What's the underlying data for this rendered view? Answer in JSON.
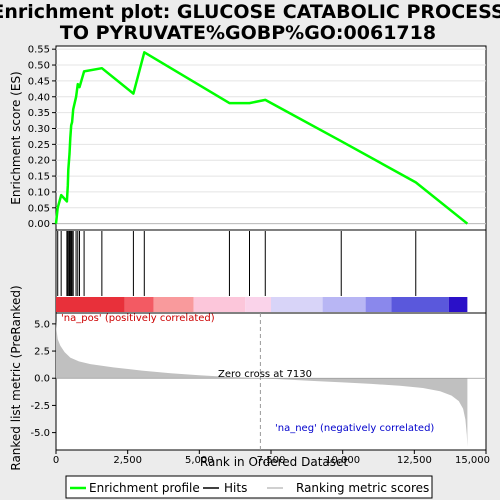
{
  "chart_data": {
    "type": "line",
    "title": "Enrichment plot: GLUCOSE CATABOLIC PROCESS TO PYRUVATE%GOBP%GO:0061718",
    "title_lines": [
      "Enrichment plot: GLUCOSE CATABOLIC PROCESS",
      "TO PYRUVATE%GOBP%GO:0061718"
    ],
    "colors": {
      "enrichment_line": "#00ff00",
      "hits": "#000000",
      "ranking_fill": "#c0c0c0",
      "positive_text": "#cc0000",
      "negative_text": "#0000cc",
      "plot_border": "#000000"
    },
    "es_panel": {
      "ylabel": "Enrichment score (ES)",
      "ylim": [
        -0.02,
        0.56
      ],
      "yticks": [
        0.0,
        0.05,
        0.1,
        0.15,
        0.2,
        0.25,
        0.3,
        0.35,
        0.4,
        0.45,
        0.5,
        0.55
      ],
      "ytick_labels": [
        "0.00",
        "0.05",
        "0.10",
        "0.15",
        "0.20",
        "0.25",
        "0.30",
        "0.35",
        "0.40",
        "0.45",
        "0.50",
        "0.55"
      ],
      "series": [
        {
          "name": "Enrichment profile",
          "x": [
            0,
            60,
            180,
            380,
            410,
            430,
            470,
            500,
            530,
            560,
            600,
            700,
            760,
            820,
            980,
            1600,
            2700,
            3080,
            6050,
            6750,
            7300,
            9950,
            12550,
            14350
          ],
          "y": [
            0.0,
            0.05,
            0.09,
            0.07,
            0.12,
            0.17,
            0.22,
            0.27,
            0.31,
            0.32,
            0.36,
            0.4,
            0.44,
            0.43,
            0.48,
            0.49,
            0.41,
            0.54,
            0.38,
            0.38,
            0.39,
            0.26,
            0.13,
            0.0
          ]
        }
      ]
    },
    "hits": {
      "positions": [
        60,
        180,
        380,
        410,
        430,
        470,
        500,
        530,
        560,
        600,
        700,
        760,
        820,
        980,
        1600,
        2700,
        3080,
        6050,
        6750,
        7300,
        9950,
        12550
      ]
    },
    "heatmap_bar": {
      "segments": [
        {
          "start": 0,
          "end": 2400,
          "color": "#e8303a"
        },
        {
          "start": 2400,
          "end": 3400,
          "color": "#f35a63"
        },
        {
          "start": 3400,
          "end": 4800,
          "color": "#f99a9c"
        },
        {
          "start": 4800,
          "end": 6600,
          "color": "#fcc6da"
        },
        {
          "start": 6600,
          "end": 7500,
          "color": "#fad3ea"
        },
        {
          "start": 7500,
          "end": 9300,
          "color": "#d8d4f8"
        },
        {
          "start": 9300,
          "end": 10800,
          "color": "#b8b6f4"
        },
        {
          "start": 10800,
          "end": 11700,
          "color": "#8a88ec"
        },
        {
          "start": 11700,
          "end": 13700,
          "color": "#5a58dc"
        },
        {
          "start": 13700,
          "end": 14350,
          "color": "#2a10c8"
        }
      ]
    },
    "ranking_panel": {
      "ylabel": "Ranked list metric (PreRanked)",
      "ylim": [
        -6.6,
        6.0
      ],
      "yticks": [
        -5.0,
        -2.5,
        0.0,
        2.5,
        5.0
      ],
      "ytick_labels": [
        "-5.0",
        "-2.5",
        "0.0",
        "2.5",
        "5.0"
      ],
      "series": [
        {
          "name": "Ranking metric scores",
          "x": [
            0,
            20,
            60,
            150,
            300,
            500,
            800,
            1200,
            2000,
            3000,
            4000,
            5000,
            6000,
            7130,
            8000,
            9000,
            10000,
            11000,
            12000,
            12800,
            13400,
            13800,
            14050,
            14200,
            14280,
            14330,
            14350
          ],
          "y": [
            5.3,
            4.4,
            3.6,
            3.0,
            2.4,
            1.9,
            1.55,
            1.3,
            1.0,
            0.7,
            0.45,
            0.28,
            0.12,
            0.0,
            -0.12,
            -0.25,
            -0.38,
            -0.52,
            -0.7,
            -0.9,
            -1.2,
            -1.6,
            -2.1,
            -2.8,
            -3.8,
            -5.2,
            -6.3
          ]
        }
      ],
      "zero_cross": 7130,
      "zero_cross_label": "Zero cross at 7130",
      "positive_label": "'na_pos' (positively correlated)",
      "negative_label": "'na_neg' (negatively correlated)"
    },
    "x_axis": {
      "xlabel": "Rank in Ordered Dataset",
      "xlim": [
        0,
        15000
      ],
      "xticks": [
        0,
        2500,
        5000,
        7500,
        10000,
        12500,
        15000
      ],
      "xtick_labels": [
        "0",
        "2,500",
        "5,000",
        "7,500",
        "10,000",
        "12,500",
        "15,000"
      ]
    },
    "legend": {
      "placement": "bottom",
      "entries": [
        {
          "label": "Enrichment profile",
          "color": "#00ff00"
        },
        {
          "label": "Hits",
          "color": "#000000"
        },
        {
          "label": "Ranking metric scores",
          "color": "#c0c0c0"
        }
      ]
    }
  }
}
